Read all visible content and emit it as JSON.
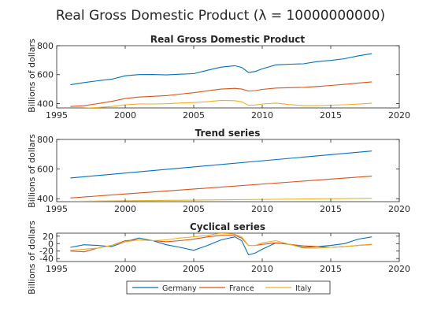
{
  "figure": {
    "title": "Real Gross Domestic Product (λ = 10000000000)"
  },
  "colors": {
    "Germany": "#0072bd",
    "France": "#d95319",
    "Italy": "#edb120"
  },
  "legend": {
    "placement": "bottom",
    "entries": [
      "Germany",
      "France",
      "Italy"
    ]
  },
  "chart_data": [
    {
      "type": "line",
      "title": "Real Gross Domestic Product",
      "ylabel": "Billions of dollars",
      "xlim": [
        1995,
        2020
      ],
      "ylim": [
        370,
        800
      ],
      "xticks": [
        1995,
        2000,
        2005,
        2010,
        2015,
        2020
      ],
      "yticks": [
        400,
        600,
        800
      ],
      "grid": false,
      "series": [
        {
          "name": "Germany",
          "x": [
            1996,
            1997,
            1998,
            1999,
            2000,
            2001,
            2002,
            2003,
            2004,
            2005,
            2006,
            2007,
            2008,
            2008.5,
            2009,
            2009.5,
            2010,
            2011,
            2012,
            2013,
            2014,
            2015,
            2016,
            2017,
            2018
          ],
          "values": [
            530,
            545,
            558,
            568,
            592,
            600,
            601,
            598,
            603,
            607,
            630,
            652,
            662,
            650,
            615,
            622,
            640,
            668,
            672,
            675,
            690,
            698,
            710,
            730,
            745
          ]
        },
        {
          "name": "France",
          "x": [
            1996,
            1997,
            1998,
            1999,
            2000,
            2001,
            2002,
            2003,
            2004,
            2005,
            2006,
            2007,
            2008,
            2008.5,
            2009,
            2009.5,
            2010,
            2011,
            2012,
            2013,
            2014,
            2015,
            2016,
            2017,
            2018
          ],
          "values": [
            380,
            385,
            400,
            415,
            435,
            445,
            450,
            455,
            465,
            475,
            488,
            500,
            505,
            500,
            487,
            490,
            498,
            507,
            510,
            512,
            518,
            525,
            533,
            542,
            550
          ]
        },
        {
          "name": "Italy",
          "x": [
            1996,
            1997,
            1998,
            1999,
            2000,
            2001,
            2002,
            2003,
            2004,
            2005,
            2006,
            2007,
            2008,
            2008.5,
            2009,
            2009.5,
            2010,
            2011,
            2012,
            2013,
            2014,
            2015,
            2016,
            2017,
            2018
          ],
          "values": [
            362,
            368,
            373,
            380,
            392,
            398,
            397,
            399,
            404,
            407,
            413,
            422,
            420,
            412,
            388,
            390,
            397,
            403,
            393,
            386,
            386,
            389,
            392,
            396,
            402
          ]
        }
      ]
    },
    {
      "type": "line",
      "title": "Trend series",
      "ylabel": "Billions of dollars",
      "xlim": [
        1995,
        2020
      ],
      "ylim": [
        380,
        800
      ],
      "xticks": [
        1995,
        2000,
        2005,
        2010,
        2015,
        2020
      ],
      "yticks": [
        400,
        600,
        800
      ],
      "grid": false,
      "series": [
        {
          "name": "Germany",
          "x": [
            1996,
            2018
          ],
          "values": [
            540,
            722
          ]
        },
        {
          "name": "France",
          "x": [
            1996,
            2018
          ],
          "values": [
            405,
            552
          ]
        },
        {
          "name": "Italy",
          "x": [
            1996,
            2018
          ],
          "values": [
            382,
            403
          ]
        }
      ]
    },
    {
      "type": "line",
      "title": "Cyclical series",
      "ylabel": "Billions of dollars",
      "xlim": [
        1995,
        2020
      ],
      "ylim": [
        -48,
        28
      ],
      "xticks": [
        1995,
        2000,
        2005,
        2010,
        2015,
        2020
      ],
      "yticks": [
        -40,
        -20,
        0,
        20
      ],
      "grid": false,
      "series": [
        {
          "name": "Germany",
          "x": [
            1996,
            1997,
            1998,
            1999,
            2000,
            2001,
            2002,
            2003,
            2004,
            2005,
            2006,
            2007,
            2008,
            2008.5,
            2009,
            2009.5,
            2010,
            2011,
            2012,
            2013,
            2014,
            2015,
            2016,
            2017,
            2018
          ],
          "values": [
            -10,
            -3,
            -5,
            -8,
            5,
            15,
            8,
            -3,
            -10,
            -18,
            -5,
            10,
            18,
            8,
            -30,
            -25,
            -15,
            2,
            -2,
            -10,
            -8,
            -5,
            0,
            12,
            18
          ]
        },
        {
          "name": "France",
          "x": [
            1996,
            1997,
            1998,
            1999,
            2000,
            2001,
            2002,
            2003,
            2004,
            2005,
            2006,
            2007,
            2008,
            2008.5,
            2009,
            2009.5,
            2010,
            2011,
            2012,
            2013,
            2014,
            2015,
            2016,
            2017,
            2018
          ],
          "values": [
            -20,
            -22,
            -12,
            -5,
            8,
            10,
            8,
            5,
            8,
            12,
            18,
            22,
            22,
            15,
            -5,
            -5,
            -2,
            2,
            -2,
            -6,
            -8,
            -10,
            -8,
            -5,
            -2
          ]
        },
        {
          "name": "Italy",
          "x": [
            1996,
            1997,
            1998,
            1999,
            2000,
            2001,
            2002,
            2003,
            2004,
            2005,
            2006,
            2007,
            2008,
            2008.5,
            2009,
            2009.5,
            2010,
            2011,
            2012,
            2013,
            2014,
            2015,
            2016,
            2017,
            2018
          ],
          "values": [
            -18,
            -15,
            -12,
            -5,
            5,
            10,
            8,
            10,
            15,
            18,
            22,
            28,
            25,
            18,
            -5,
            -5,
            2,
            8,
            -2,
            -12,
            -12,
            -10,
            -8,
            -5,
            -3
          ]
        }
      ]
    }
  ]
}
